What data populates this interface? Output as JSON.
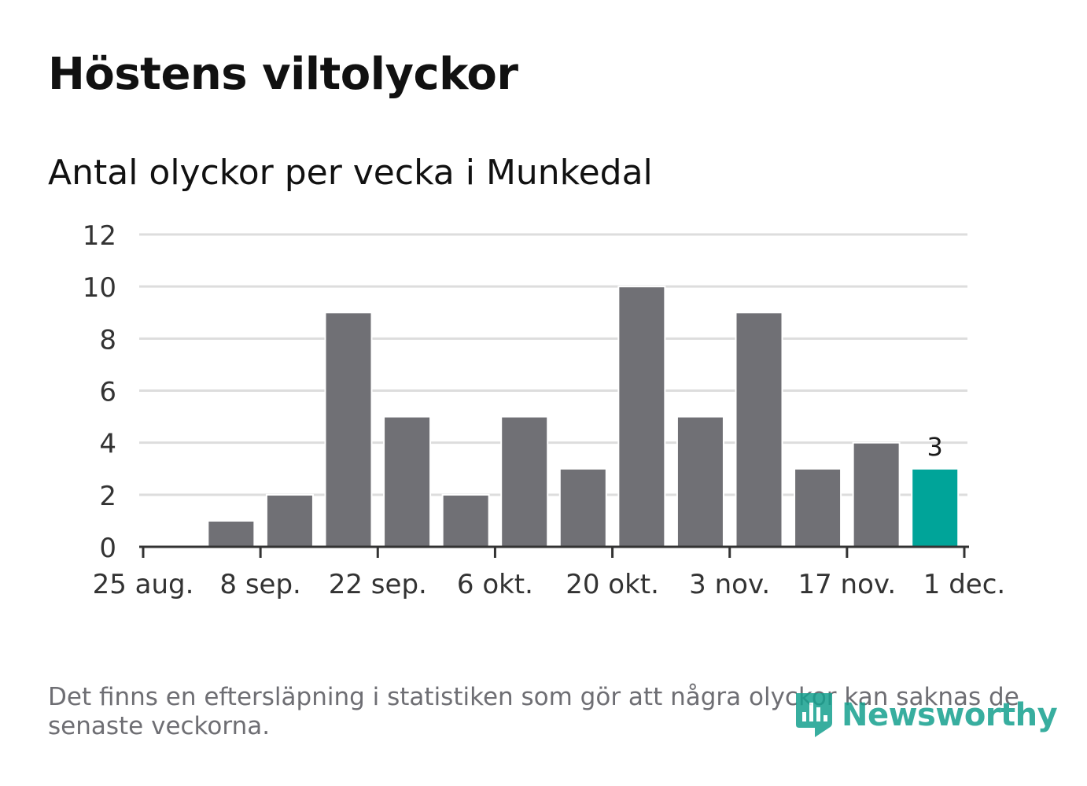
{
  "header": {
    "title": "Höstens viltolyckor",
    "subtitle": "Antal olyckor per vecka i Munkedal"
  },
  "footnote": "Det finns en eftersläpning i statistiken som gör att några olyckor kan saknas de senaste veckorna.",
  "logo": {
    "text": "Newsworthy",
    "icon": "newsworthy-logo-icon",
    "color": "#16a08f"
  },
  "colors": {
    "bar": "#707075",
    "highlight": "#00a499",
    "grid": "#dddddd",
    "axis": "#333333",
    "text": "#333333"
  },
  "chart_data": {
    "type": "bar",
    "categories": [
      "1 sep.",
      "8 sep.",
      "15 sep.",
      "22 sep.",
      "29 sep.",
      "6 okt.",
      "13 okt.",
      "20 okt.",
      "27 okt.",
      "3 nov.",
      "10 nov.",
      "17 nov.",
      "24 nov."
    ],
    "values": [
      1,
      2,
      9,
      5,
      2,
      5,
      3,
      10,
      5,
      9,
      3,
      4,
      3
    ],
    "highlight_index": 12,
    "highlight_label": "3",
    "x_ticks": [
      "25 aug.",
      "8 sep.",
      "22 sep.",
      "6 okt.",
      "20 okt.",
      "3 nov.",
      "17 nov.",
      "1 dec."
    ],
    "y_ticks": [
      0,
      2,
      4,
      6,
      8,
      10,
      12
    ],
    "ylim": [
      0,
      12
    ],
    "xlim": [
      "25 aug.",
      "1 dec."
    ],
    "title": "Antal olyckor per vecka i Munkedal",
    "xlabel": "",
    "ylabel": "",
    "grid": true,
    "legend": "none"
  }
}
